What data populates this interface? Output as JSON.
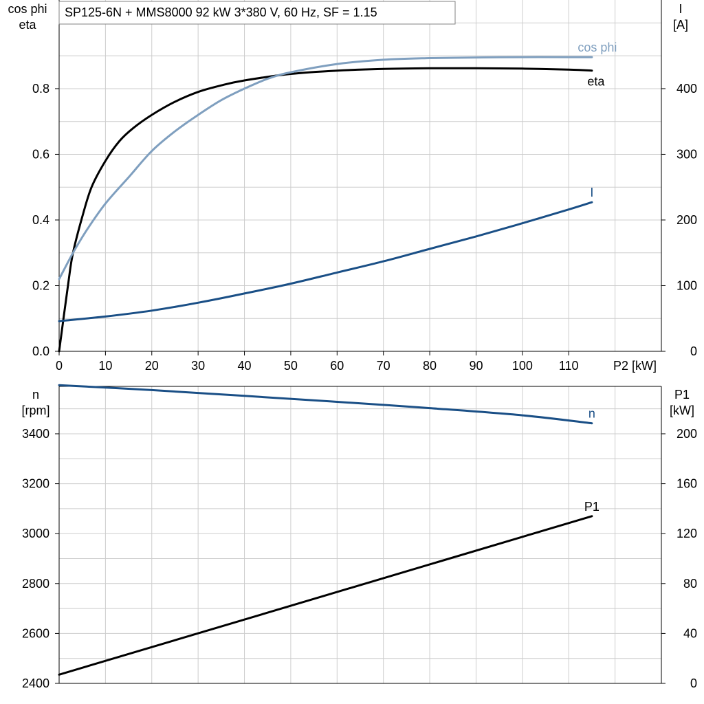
{
  "chart_title": "SP125-6N + MMS8000   92 kW   3*380 V, 60 Hz, SF = 1.15",
  "colors": {
    "eta": "#000000",
    "cos_phi": "#7f9fbf",
    "current": "#1a4f86",
    "speed": "#1a4f86",
    "p1": "#000000",
    "grid": "#cccccc"
  },
  "chart_data": [
    {
      "type": "line",
      "panel": "top",
      "xlabel": "P2 [kW]",
      "xlim": [
        0,
        130
      ],
      "x_ticks": [
        0,
        10,
        20,
        30,
        40,
        50,
        60,
        70,
        80,
        90,
        100,
        110
      ],
      "y_left_label": [
        "cos phi",
        "eta"
      ],
      "y_left_lim": [
        0,
        1.07
      ],
      "y_left_ticks": [
        "0.0",
        "0.2",
        "0.4",
        "0.6",
        "0.8"
      ],
      "y_right_label": [
        "I",
        "[A]"
      ],
      "y_right_lim": [
        0,
        535
      ],
      "y_right_ticks": [
        "0",
        "100",
        "200",
        "300",
        "400"
      ],
      "grid": true,
      "series": [
        {
          "name": "eta",
          "axis": "left",
          "x": [
            0,
            2,
            3,
            5,
            7,
            10,
            13,
            16,
            20,
            25,
            30,
            35,
            40,
            50,
            60,
            70,
            80,
            90,
            100,
            110,
            115
          ],
          "y": [
            0.0,
            0.21,
            0.3,
            0.41,
            0.5,
            0.58,
            0.64,
            0.68,
            0.72,
            0.76,
            0.79,
            0.81,
            0.825,
            0.845,
            0.855,
            0.86,
            0.862,
            0.862,
            0.861,
            0.858,
            0.855
          ]
        },
        {
          "name": "cos phi",
          "axis": "left",
          "x": [
            0,
            3,
            6,
            10,
            15,
            20,
            25,
            30,
            35,
            40,
            45,
            50,
            60,
            70,
            80,
            90,
            100,
            110,
            115
          ],
          "y": [
            0.22,
            0.3,
            0.37,
            0.45,
            0.53,
            0.61,
            0.67,
            0.72,
            0.765,
            0.8,
            0.83,
            0.85,
            0.875,
            0.888,
            0.893,
            0.895,
            0.896,
            0.896,
            0.896
          ]
        },
        {
          "name": "I",
          "axis": "right",
          "x": [
            0,
            10,
            20,
            30,
            40,
            50,
            60,
            70,
            80,
            90,
            100,
            110,
            115
          ],
          "y": [
            46,
            53,
            62,
            74,
            88,
            103,
            120,
            137,
            156,
            175,
            195,
            216,
            227
          ]
        }
      ]
    },
    {
      "type": "line",
      "panel": "bottom",
      "xlim": [
        0,
        130
      ],
      "y_left_label": [
        "n",
        "[rpm]"
      ],
      "y_left_lim": [
        2400,
        3590
      ],
      "y_left_ticks": [
        "2400",
        "2600",
        "2800",
        "3000",
        "3200",
        "3400"
      ],
      "y_right_label": [
        "P1",
        "[kW]"
      ],
      "y_right_lim": [
        0,
        238
      ],
      "y_right_ticks": [
        "0",
        "40",
        "80",
        "120",
        "160",
        "200"
      ],
      "grid": true,
      "series": [
        {
          "name": "n",
          "axis": "left",
          "x": [
            0,
            20,
            40,
            60,
            80,
            100,
            115
          ],
          "y": [
            3595,
            3575,
            3552,
            3528,
            3503,
            3474,
            3442
          ]
        },
        {
          "name": "P1",
          "axis": "right",
          "x": [
            0,
            115
          ],
          "y": [
            7,
            134
          ]
        }
      ]
    }
  ]
}
